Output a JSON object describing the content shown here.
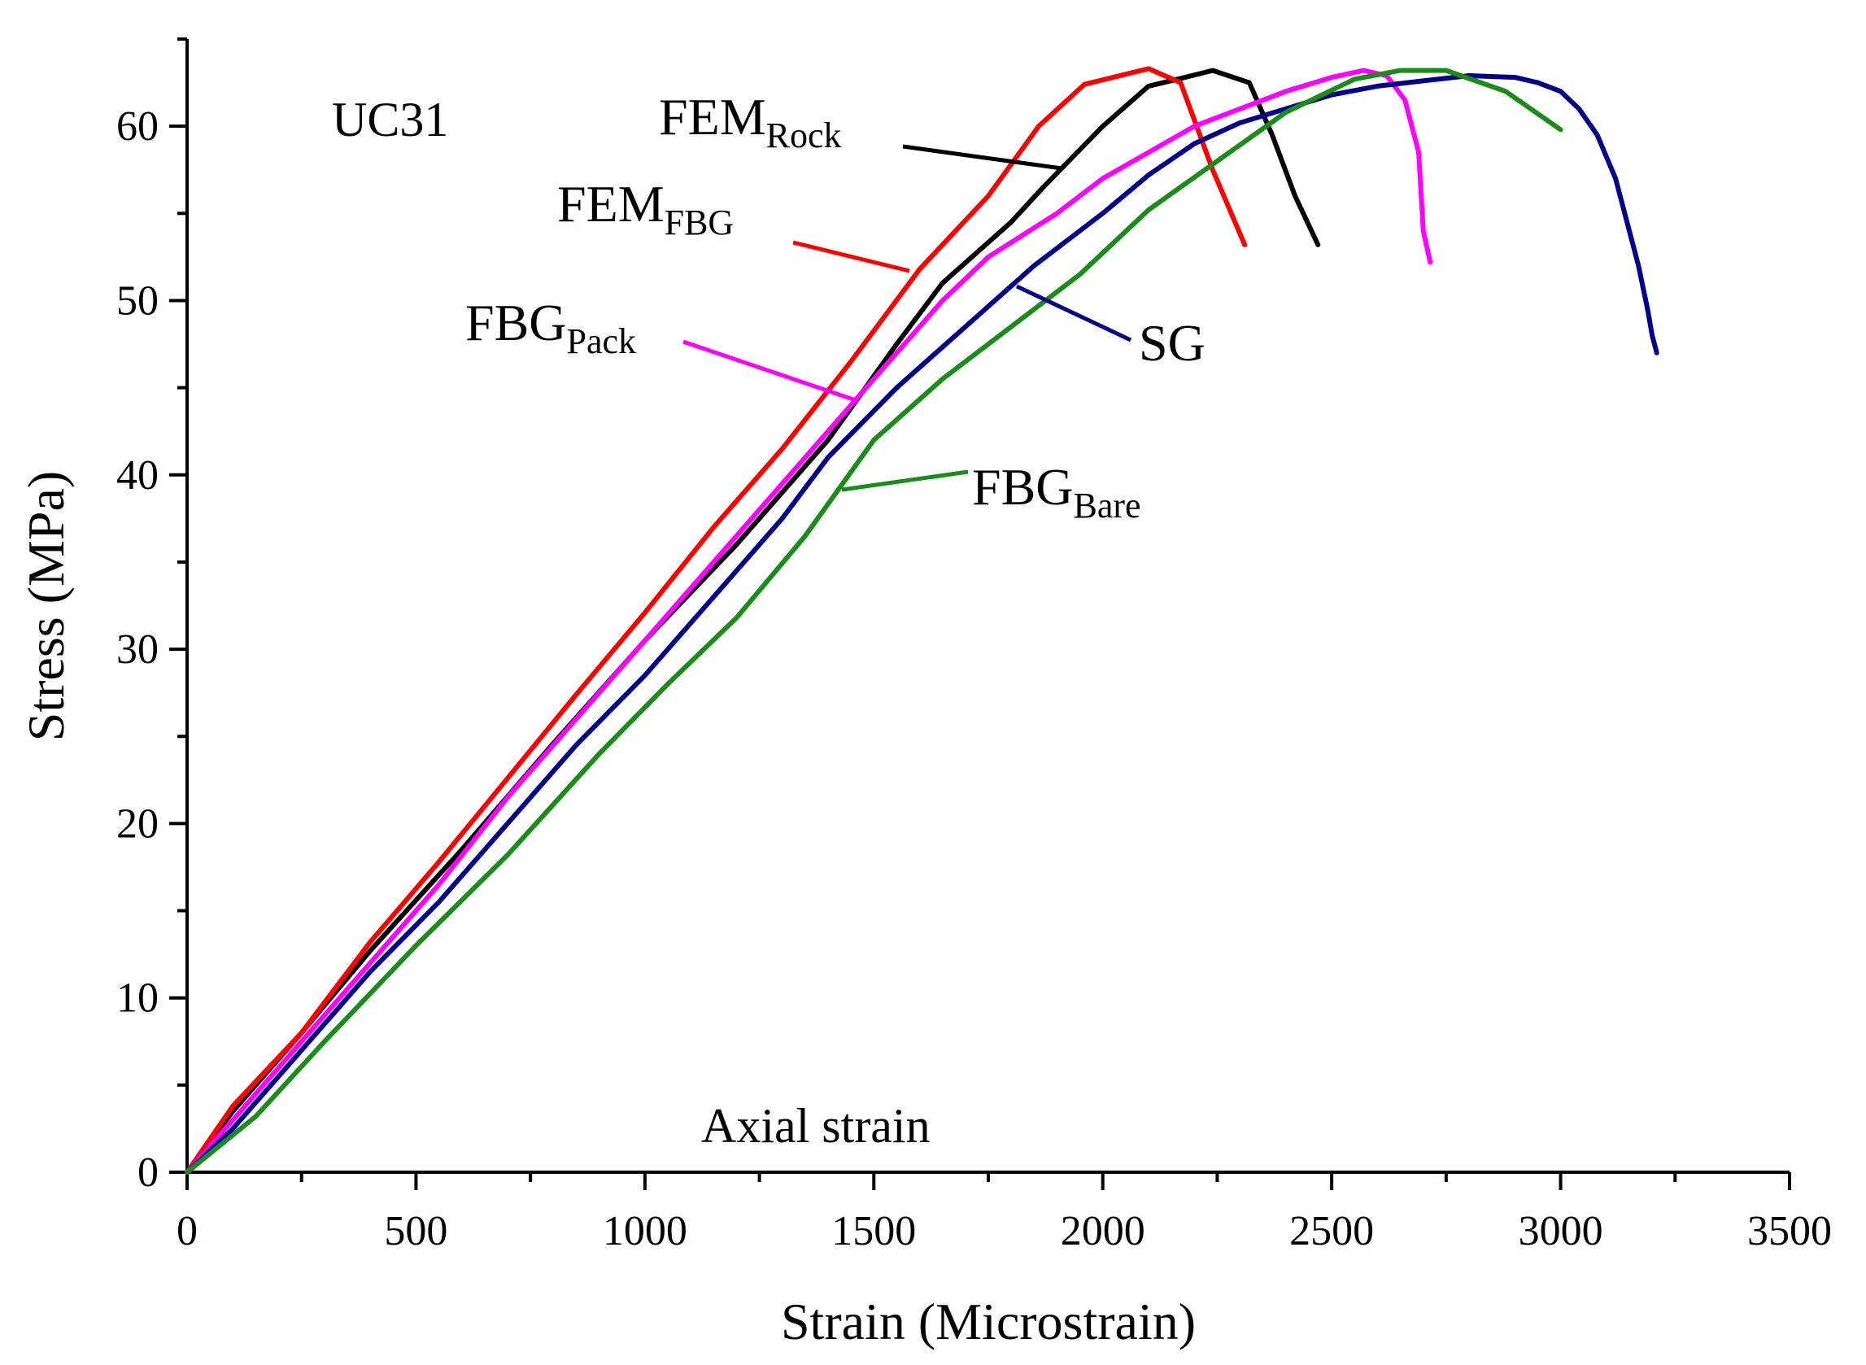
{
  "chart_data": {
    "type": "line",
    "panel_label": "UC31",
    "annotation": "Axial strain",
    "xlabel": "Strain (Microstrain)",
    "ylabel": "Stress (MPa)",
    "xlim": [
      0,
      3500
    ],
    "ylim": [
      0,
      65
    ],
    "x_ticks": [
      0,
      500,
      1000,
      1500,
      2000,
      2500,
      3000,
      3500
    ],
    "y_ticks": [
      0,
      10,
      20,
      30,
      40,
      50,
      60
    ],
    "grid": false,
    "series": [
      {
        "key": "fem_rock",
        "name": "FEM",
        "subscript": "Rock",
        "color": "#000000",
        "points": [
          [
            0,
            0
          ],
          [
            100,
            3.5
          ],
          [
            250,
            8
          ],
          [
            400,
            12.7
          ],
          [
            600,
            18.5
          ],
          [
            800,
            24.6
          ],
          [
            1000,
            30.5
          ],
          [
            1200,
            36
          ],
          [
            1400,
            42
          ],
          [
            1550,
            47.5
          ],
          [
            1650,
            51
          ],
          [
            1800,
            54.5
          ],
          [
            1870,
            56.5
          ],
          [
            2000,
            60
          ],
          [
            2100,
            62.3
          ],
          [
            2180,
            62.8
          ],
          [
            2240,
            63.2
          ],
          [
            2320,
            62.5
          ],
          [
            2370,
            59.5
          ],
          [
            2420,
            56
          ],
          [
            2470,
            53.2
          ]
        ]
      },
      {
        "key": "fem_fbg",
        "name": "FEM",
        "subscript": "FBG",
        "color": "#ff0000",
        "points": [
          [
            0,
            0
          ],
          [
            100,
            3.8
          ],
          [
            250,
            8
          ],
          [
            400,
            13.2
          ],
          [
            550,
            17.8
          ],
          [
            700,
            22.6
          ],
          [
            850,
            27.4
          ],
          [
            1000,
            32.1
          ],
          [
            1150,
            37
          ],
          [
            1300,
            41.5
          ],
          [
            1450,
            46.5
          ],
          [
            1600,
            51.8
          ],
          [
            1750,
            56
          ],
          [
            1860,
            60
          ],
          [
            1960,
            62.4
          ],
          [
            2100,
            63.3
          ],
          [
            2170,
            62.5
          ],
          [
            2240,
            57.5
          ],
          [
            2310,
            53.2
          ]
        ]
      },
      {
        "key": "fbg_pack",
        "name": "FBG",
        "subscript": "Pack",
        "color": "#ff00ff",
        "points": [
          [
            0,
            0
          ],
          [
            100,
            3
          ],
          [
            250,
            7.5
          ],
          [
            400,
            12
          ],
          [
            550,
            16.5
          ],
          [
            700,
            21.5
          ],
          [
            850,
            26
          ],
          [
            1000,
            30.5
          ],
          [
            1150,
            35
          ],
          [
            1300,
            39.5
          ],
          [
            1450,
            44
          ],
          [
            1550,
            47
          ],
          [
            1650,
            50
          ],
          [
            1750,
            52.5
          ],
          [
            1900,
            55
          ],
          [
            2000,
            57
          ],
          [
            2100,
            58.5
          ],
          [
            2200,
            60
          ],
          [
            2300,
            61
          ],
          [
            2400,
            62
          ],
          [
            2500,
            62.8
          ],
          [
            2570,
            63.2
          ],
          [
            2620,
            62.9
          ],
          [
            2660,
            61.5
          ],
          [
            2690,
            58.5
          ],
          [
            2700,
            54
          ],
          [
            2715,
            52.2
          ]
        ]
      },
      {
        "key": "sg",
        "name": "SG",
        "subscript": "",
        "color": "#00008b",
        "points": [
          [
            0,
            0
          ],
          [
            100,
            2.5
          ],
          [
            250,
            7
          ],
          [
            400,
            11.5
          ],
          [
            550,
            15.5
          ],
          [
            700,
            20
          ],
          [
            850,
            24.5
          ],
          [
            1000,
            28.5
          ],
          [
            1150,
            33
          ],
          [
            1300,
            37.5
          ],
          [
            1400,
            41
          ],
          [
            1550,
            45
          ],
          [
            1700,
            48.5
          ],
          [
            1850,
            52
          ],
          [
            2000,
            55
          ],
          [
            2100,
            57.2
          ],
          [
            2200,
            59
          ],
          [
            2300,
            60.2
          ],
          [
            2400,
            61
          ],
          [
            2500,
            61.8
          ],
          [
            2600,
            62.3
          ],
          [
            2700,
            62.6
          ],
          [
            2800,
            62.9
          ],
          [
            2900,
            62.8
          ],
          [
            2950,
            62.5
          ],
          [
            3000,
            62
          ],
          [
            3040,
            61
          ],
          [
            3080,
            59.5
          ],
          [
            3120,
            57
          ],
          [
            3150,
            54
          ],
          [
            3170,
            52
          ],
          [
            3190,
            49.5
          ],
          [
            3200,
            48
          ],
          [
            3210,
            47
          ]
        ]
      },
      {
        "key": "fbg_bare",
        "name": "FBG",
        "subscript": "Bare",
        "color": "#1a8c1a",
        "points": [
          [
            0,
            0
          ],
          [
            150,
            3.2
          ],
          [
            300,
            7.5
          ],
          [
            500,
            13
          ],
          [
            700,
            18.2
          ],
          [
            900,
            24
          ],
          [
            1050,
            28
          ],
          [
            1200,
            31.8
          ],
          [
            1350,
            36.5
          ],
          [
            1500,
            42
          ],
          [
            1650,
            45.5
          ],
          [
            1800,
            48.5
          ],
          [
            1950,
            51.5
          ],
          [
            2100,
            55.2
          ],
          [
            2250,
            58
          ],
          [
            2400,
            60.8
          ],
          [
            2550,
            62.7
          ],
          [
            2650,
            63.2
          ],
          [
            2750,
            63.2
          ],
          [
            2880,
            62
          ],
          [
            3000,
            59.8
          ]
        ]
      }
    ]
  }
}
